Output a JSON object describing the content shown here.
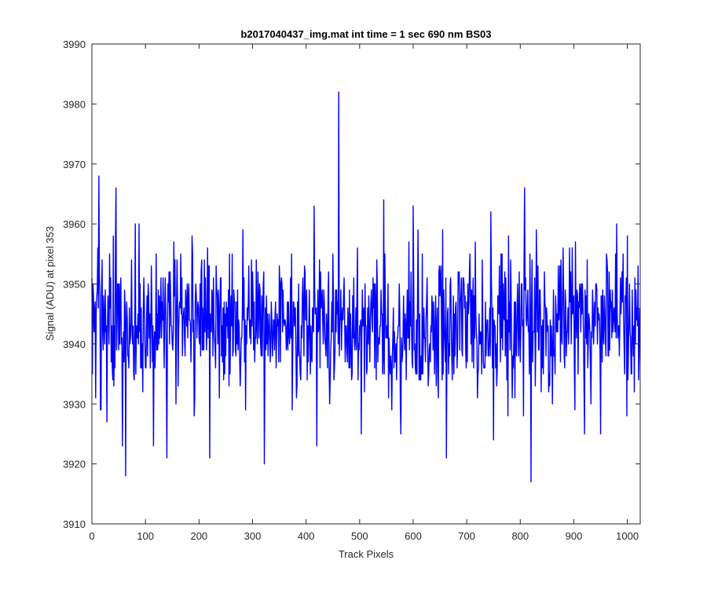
{
  "chart_data": {
    "type": "line",
    "title": "b2017040437_img.mat int time = 1 sec  690 nm BS03",
    "xlabel": "Track Pixels",
    "ylabel": "Signal (ADU) at pixel 353",
    "xlim": [
      0,
      1024
    ],
    "ylim": [
      3910,
      3990
    ],
    "xticks": [
      0,
      100,
      200,
      300,
      400,
      500,
      600,
      700,
      800,
      900,
      1000
    ],
    "yticks": [
      3910,
      3920,
      3930,
      3940,
      3950,
      3960,
      3970,
      3980,
      3990
    ],
    "grid": false,
    "legend": "none",
    "series": [
      {
        "color": "#0000ff",
        "baseline_mean": 3944,
        "noise_sd": 6,
        "n_points": 1024,
        "notable_points": [
          {
            "x": 0,
            "y": 3951
          },
          {
            "x": 7,
            "y": 3931
          },
          {
            "x": 13,
            "y": 3968
          },
          {
            "x": 17,
            "y": 3929
          },
          {
            "x": 28,
            "y": 3927
          },
          {
            "x": 45,
            "y": 3966
          },
          {
            "x": 57,
            "y": 3923
          },
          {
            "x": 63,
            "y": 3918
          },
          {
            "x": 88,
            "y": 3960
          },
          {
            "x": 115,
            "y": 3923
          },
          {
            "x": 140,
            "y": 3921
          },
          {
            "x": 220,
            "y": 3921
          },
          {
            "x": 257,
            "y": 3955
          },
          {
            "x": 322,
            "y": 3920
          },
          {
            "x": 415,
            "y": 3963
          },
          {
            "x": 420,
            "y": 3923
          },
          {
            "x": 461,
            "y": 3982
          },
          {
            "x": 503,
            "y": 3925
          },
          {
            "x": 545,
            "y": 3964
          },
          {
            "x": 577,
            "y": 3925
          },
          {
            "x": 600,
            "y": 3963
          },
          {
            "x": 662,
            "y": 3921
          },
          {
            "x": 745,
            "y": 3962
          },
          {
            "x": 750,
            "y": 3924
          },
          {
            "x": 808,
            "y": 3966
          },
          {
            "x": 820,
            "y": 3917
          },
          {
            "x": 920,
            "y": 3925
          },
          {
            "x": 950,
            "y": 3925
          },
          {
            "x": 1000,
            "y": 3958
          },
          {
            "x": 1023,
            "y": 3946
          }
        ]
      }
    ]
  }
}
